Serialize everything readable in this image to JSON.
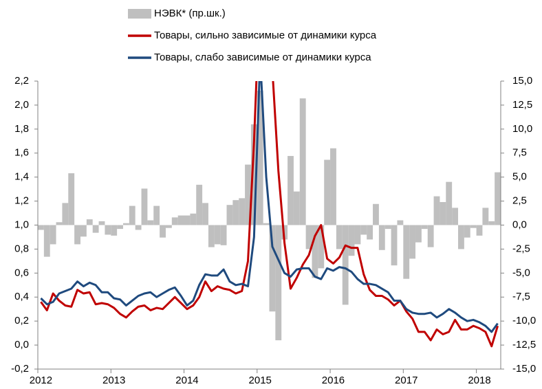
{
  "chart_data": {
    "type": "combo",
    "categories": [
      "2012",
      null,
      null,
      null,
      null,
      null,
      null,
      null,
      null,
      null,
      null,
      null,
      "2013",
      null,
      null,
      null,
      null,
      null,
      null,
      null,
      null,
      null,
      null,
      null,
      "2014",
      null,
      null,
      null,
      null,
      null,
      null,
      null,
      null,
      null,
      null,
      null,
      "2015",
      null,
      null,
      null,
      null,
      null,
      null,
      null,
      null,
      null,
      null,
      null,
      "2016",
      null,
      null,
      null,
      null,
      null,
      null,
      null,
      null,
      null,
      null,
      null,
      "2017",
      null,
      null,
      null,
      null,
      null,
      null,
      null,
      null,
      null,
      null,
      null,
      "2018",
      null,
      null,
      null
    ],
    "series": [
      {
        "name": "НЭВК* (пр.шк.)",
        "type": "bar",
        "axis": "y2",
        "color": "#bfbfbf",
        "values": [
          -0.5,
          -3.3,
          -2.0,
          0.3,
          2.3,
          5.4,
          -2.0,
          -1.2,
          0.6,
          -0.8,
          0.4,
          -1.0,
          -1.1,
          -0.4,
          0.2,
          2.0,
          -0.5,
          3.8,
          0.5,
          2.0,
          -1.3,
          -0.3,
          0.8,
          1.0,
          1.0,
          1.2,
          4.2,
          2.3,
          -2.3,
          -2.0,
          -2.1,
          2.1,
          2.6,
          2.8,
          6.3,
          10.5,
          14.0,
          0.2,
          -9.0,
          -12.0,
          -1.5,
          7.2,
          3.5,
          13.2,
          -2.5,
          -5.5,
          -4.5,
          6.8,
          8.0,
          -2.5,
          -8.3,
          -3.2,
          -2.0,
          -1.0,
          -1.5,
          2.2,
          -2.6,
          -0.4,
          -4.2,
          0.5,
          -5.6,
          -3.5,
          -1.8,
          -0.4,
          -2.3,
          3.0,
          2.4,
          4.5,
          1.8,
          -2.5,
          -1.3,
          -0.3,
          -1.1,
          1.8,
          0.4,
          5.5
        ]
      },
      {
        "name": "Товары, сильно зависимые от динамики курса",
        "type": "line",
        "axis": "y",
        "color": "#c00000",
        "values": [
          0.36,
          0.29,
          0.43,
          0.37,
          0.33,
          0.32,
          0.46,
          0.43,
          0.44,
          0.34,
          0.35,
          0.34,
          0.31,
          0.26,
          0.23,
          0.28,
          0.32,
          0.33,
          0.29,
          0.31,
          0.3,
          0.35,
          0.4,
          0.35,
          0.3,
          0.33,
          0.4,
          0.53,
          0.45,
          0.49,
          0.47,
          0.46,
          0.43,
          0.45,
          0.7,
          1.7,
          3.0,
          3.5,
          2.3,
          1.45,
          0.85,
          0.47,
          0.56,
          0.67,
          0.75,
          0.91,
          1.0,
          0.72,
          0.68,
          0.73,
          0.83,
          0.81,
          0.81,
          0.59,
          0.46,
          0.41,
          0.41,
          0.38,
          0.33,
          0.37,
          0.28,
          0.22,
          0.11,
          0.11,
          0.04,
          0.13,
          0.09,
          0.11,
          0.21,
          0.13,
          0.13,
          0.16,
          0.14,
          0.11,
          -0.01,
          0.16
        ]
      },
      {
        "name": "Товары, слабо зависимые от динамики курса",
        "type": "line",
        "axis": "y",
        "color": "#1f4a7e",
        "values": [
          0.39,
          0.34,
          0.36,
          0.43,
          0.45,
          0.47,
          0.53,
          0.49,
          0.52,
          0.5,
          0.44,
          0.44,
          0.39,
          0.38,
          0.33,
          0.37,
          0.41,
          0.43,
          0.44,
          0.4,
          0.43,
          0.46,
          0.48,
          0.41,
          0.33,
          0.37,
          0.5,
          0.59,
          0.58,
          0.58,
          0.63,
          0.53,
          0.5,
          0.51,
          0.49,
          0.9,
          2.4,
          1.4,
          0.82,
          0.71,
          0.6,
          0.57,
          0.63,
          0.64,
          0.64,
          0.57,
          0.55,
          0.64,
          0.62,
          0.65,
          0.64,
          0.61,
          0.55,
          0.51,
          0.51,
          0.5,
          0.47,
          0.44,
          0.37,
          0.37,
          0.3,
          0.27,
          0.26,
          0.26,
          0.27,
          0.23,
          0.26,
          0.3,
          0.27,
          0.23,
          0.2,
          0.21,
          0.19,
          0.16,
          0.11,
          0.18
        ]
      }
    ],
    "ylim": [
      -0.2,
      2.2
    ],
    "yticks": [
      {
        "value": 2.2,
        "label": "2,2"
      },
      {
        "value": 2.0,
        "label": "2,0"
      },
      {
        "value": 1.8,
        "label": "1,8"
      },
      {
        "value": 1.6,
        "label": "1,6"
      },
      {
        "value": 1.4,
        "label": "1,4"
      },
      {
        "value": 1.2,
        "label": "1,2"
      },
      {
        "value": 1.0,
        "label": "1,0"
      },
      {
        "value": 0.8,
        "label": "0,8"
      },
      {
        "value": 0.6,
        "label": "0,6"
      },
      {
        "value": 0.4,
        "label": "0,4"
      },
      {
        "value": 0.2,
        "label": "0,2"
      },
      {
        "value": 0,
        "label": "0,0"
      },
      {
        "value": -0.2,
        "label": "-0,2"
      }
    ],
    "y2lim": [
      -15,
      15
    ],
    "y2ticks": [
      {
        "value": 15,
        "label": "15,0"
      },
      {
        "value": 12.5,
        "label": "12,5"
      },
      {
        "value": 10,
        "label": "10,0"
      },
      {
        "value": 7.5,
        "label": "7,5"
      },
      {
        "value": 5,
        "label": "5,0"
      },
      {
        "value": 2.5,
        "label": "2,5"
      },
      {
        "value": 0,
        "label": "0,0"
      },
      {
        "value": -2.5,
        "label": "-2,5"
      },
      {
        "value": -5,
        "label": "-5,0"
      },
      {
        "value": -7.5,
        "label": "-7,5"
      },
      {
        "value": -10,
        "label": "-10,0"
      },
      {
        "value": -12.5,
        "label": "-12,5"
      },
      {
        "value": -15,
        "label": "-15,0"
      }
    ]
  }
}
